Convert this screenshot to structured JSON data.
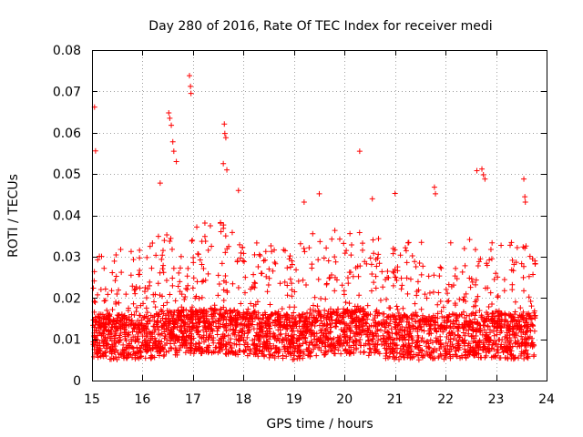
{
  "chart_data": {
    "type": "scatter",
    "title": "Day 280 of 2016, Rate Of TEC Index for receiver medi",
    "xlabel": "GPS time / hours",
    "ylabel": "ROTI / TECUs",
    "xlim": [
      15,
      24
    ],
    "ylim": [
      0,
      0.08
    ],
    "xticks": [
      "15",
      "16",
      "17",
      "18",
      "19",
      "20",
      "21",
      "22",
      "23",
      "24"
    ],
    "yticks": [
      "0",
      "0.01",
      "0.02",
      "0.03",
      "0.04",
      "0.05",
      "0.06",
      "0.07",
      "0.08"
    ],
    "grid": true,
    "marker": "+",
    "color": "#ff0000",
    "x_start": 15.02,
    "x_end": 23.78,
    "envelope": {
      "x": [
        15.0,
        15.5,
        16.0,
        16.5,
        17.0,
        17.5,
        18.0,
        18.5,
        19.0,
        19.5,
        20.0,
        20.5,
        21.0,
        21.5,
        22.0,
        22.5,
        23.0,
        23.5,
        23.8
      ],
      "base": [
        0.011,
        0.0105,
        0.0105,
        0.0115,
        0.012,
        0.012,
        0.0115,
        0.011,
        0.0105,
        0.0115,
        0.012,
        0.0115,
        0.0105,
        0.0105,
        0.0105,
        0.011,
        0.011,
        0.0105,
        0.0115
      ],
      "spread": [
        0.006,
        0.007,
        0.009,
        0.012,
        0.012,
        0.013,
        0.01,
        0.009,
        0.009,
        0.011,
        0.011,
        0.01,
        0.009,
        0.009,
        0.009,
        0.01,
        0.009,
        0.009,
        0.009
      ]
    },
    "notable_points": [
      {
        "x": 15.05,
        "y": 0.0662
      },
      {
        "x": 15.07,
        "y": 0.0556
      },
      {
        "x": 16.35,
        "y": 0.0478
      },
      {
        "x": 16.52,
        "y": 0.0648
      },
      {
        "x": 16.54,
        "y": 0.0635
      },
      {
        "x": 16.57,
        "y": 0.0618
      },
      {
        "x": 16.6,
        "y": 0.0578
      },
      {
        "x": 16.62,
        "y": 0.0555
      },
      {
        "x": 16.67,
        "y": 0.053
      },
      {
        "x": 16.93,
        "y": 0.0738
      },
      {
        "x": 16.95,
        "y": 0.0712
      },
      {
        "x": 16.96,
        "y": 0.0695
      },
      {
        "x": 17.62,
        "y": 0.0621
      },
      {
        "x": 17.63,
        "y": 0.0598
      },
      {
        "x": 17.65,
        "y": 0.0588
      },
      {
        "x": 17.6,
        "y": 0.0525
      },
      {
        "x": 17.67,
        "y": 0.051
      },
      {
        "x": 17.9,
        "y": 0.046
      },
      {
        "x": 19.2,
        "y": 0.0432
      },
      {
        "x": 19.5,
        "y": 0.0452
      },
      {
        "x": 20.3,
        "y": 0.0555
      },
      {
        "x": 20.55,
        "y": 0.044
      },
      {
        "x": 21.0,
        "y": 0.0453
      },
      {
        "x": 21.78,
        "y": 0.0468
      },
      {
        "x": 21.8,
        "y": 0.0452
      },
      {
        "x": 22.62,
        "y": 0.0508
      },
      {
        "x": 22.72,
        "y": 0.0512
      },
      {
        "x": 22.75,
        "y": 0.0498
      },
      {
        "x": 22.78,
        "y": 0.0488
      },
      {
        "x": 23.55,
        "y": 0.0488
      },
      {
        "x": 23.57,
        "y": 0.0445
      },
      {
        "x": 23.58,
        "y": 0.0432
      }
    ]
  }
}
